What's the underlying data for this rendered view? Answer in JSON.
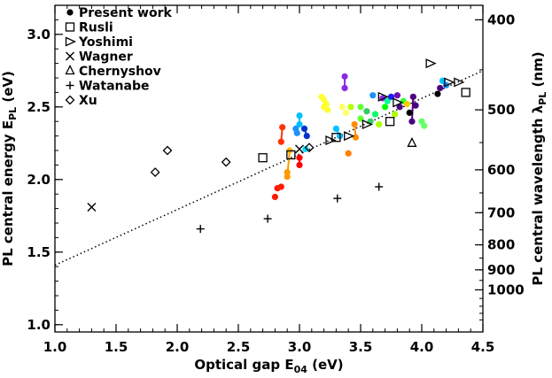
{
  "chart_data": {
    "type": "scatter",
    "xlabel": "Optical gap E",
    "xlabel_sub": "04",
    "xlabel_unit": " (eV)",
    "ylabel": "PL central energy E",
    "ylabel_sub": "PL",
    "ylabel_unit": " (eV)",
    "y2label": "PL central wavelength λ",
    "y2label_sub": "PL",
    "y2label_unit": " (nm)",
    "xlim": [
      1.0,
      4.5
    ],
    "ylim": [
      0.95,
      3.2
    ],
    "x_ticks": [
      "1.0",
      "1.5",
      "2.0",
      "2.5",
      "3.0",
      "3.5",
      "4.0",
      "4.5"
    ],
    "y_ticks": [
      "1.0",
      "1.5",
      "2.0",
      "2.5",
      "3.0"
    ],
    "y2_ticks": [
      "400",
      "500",
      "600",
      "700",
      "800",
      "900",
      "1000"
    ],
    "trend_line": {
      "x": [
        1.0,
        4.5
      ],
      "y": [
        1.41,
        2.75
      ]
    },
    "legend_position": "top-left",
    "series": [
      {
        "name": "Present work",
        "marker": "circle-filled",
        "points": [
          {
            "x": 2.8,
            "y": 1.88,
            "color": "#ff1a00"
          },
          {
            "x": 2.82,
            "y": 1.94,
            "color": "#ff1a00"
          },
          {
            "x": 2.85,
            "y": 1.95,
            "color": "#ff1a00"
          },
          {
            "x": 2.86,
            "y": 2.36,
            "color": "#ff3300"
          },
          {
            "x": 2.85,
            "y": 2.26,
            "color": "#ff3300"
          },
          {
            "x": 2.9,
            "y": 2.02,
            "color": "#ff9900"
          },
          {
            "x": 2.9,
            "y": 2.05,
            "color": "#ff9900"
          },
          {
            "x": 2.92,
            "y": 2.2,
            "color": "#ffbb00"
          },
          {
            "x": 2.97,
            "y": 2.35,
            "color": "#1e90ff"
          },
          {
            "x": 2.98,
            "y": 2.32,
            "color": "#1e90ff"
          },
          {
            "x": 3.0,
            "y": 2.15,
            "color": "#ff0000"
          },
          {
            "x": 3.0,
            "y": 2.1,
            "color": "#ff0000"
          },
          {
            "x": 3.0,
            "y": 2.44,
            "color": "#00bfff"
          },
          {
            "x": 3.0,
            "y": 2.38,
            "color": "#00bfff"
          },
          {
            "x": 3.04,
            "y": 2.35,
            "color": "#0033cc"
          },
          {
            "x": 3.06,
            "y": 2.3,
            "color": "#0033cc"
          },
          {
            "x": 3.05,
            "y": 2.21,
            "color": "#00e0ff"
          },
          {
            "x": 3.18,
            "y": 2.57,
            "color": "#ffff33"
          },
          {
            "x": 3.2,
            "y": 2.5,
            "color": "#ffff33"
          },
          {
            "x": 3.2,
            "y": 2.55,
            "color": "#ffff33"
          },
          {
            "x": 3.22,
            "y": 2.52,
            "color": "#ffff33"
          },
          {
            "x": 3.23,
            "y": 2.48,
            "color": "#ffff33"
          },
          {
            "x": 3.3,
            "y": 2.35,
            "color": "#00c0ff"
          },
          {
            "x": 3.33,
            "y": 2.3,
            "color": "#00c0ff"
          },
          {
            "x": 3.37,
            "y": 2.71,
            "color": "#8a2be2"
          },
          {
            "x": 3.37,
            "y": 2.63,
            "color": "#8a2be2"
          },
          {
            "x": 3.35,
            "y": 2.5,
            "color": "#ffff66"
          },
          {
            "x": 3.38,
            "y": 2.46,
            "color": "#ffff66"
          },
          {
            "x": 3.4,
            "y": 2.18,
            "color": "#ff7f00"
          },
          {
            "x": 3.42,
            "y": 2.5,
            "color": "#b8ff00"
          },
          {
            "x": 3.45,
            "y": 2.38,
            "color": "#ff8c00"
          },
          {
            "x": 3.46,
            "y": 2.29,
            "color": "#ff8c00"
          },
          {
            "x": 3.5,
            "y": 2.42,
            "color": "#66ff33"
          },
          {
            "x": 3.5,
            "y": 2.5,
            "color": "#66ff33"
          },
          {
            "x": 3.55,
            "y": 2.47,
            "color": "#33cc66"
          },
          {
            "x": 3.58,
            "y": 2.4,
            "color": "#33cc66"
          },
          {
            "x": 3.6,
            "y": 2.58,
            "color": "#1e90ff"
          },
          {
            "x": 3.62,
            "y": 2.45,
            "color": "#00ff66"
          },
          {
            "x": 3.65,
            "y": 2.38,
            "color": "#aaff00"
          },
          {
            "x": 3.68,
            "y": 2.56,
            "color": "#8a2be2"
          },
          {
            "x": 3.7,
            "y": 2.5,
            "color": "#00ff00"
          },
          {
            "x": 3.72,
            "y": 2.54,
            "color": "#00ff99"
          },
          {
            "x": 3.75,
            "y": 2.57,
            "color": "#1a1aff"
          },
          {
            "x": 3.78,
            "y": 2.45,
            "color": "#aaff00"
          },
          {
            "x": 3.8,
            "y": 2.58,
            "color": "#6a0dad"
          },
          {
            "x": 3.82,
            "y": 2.5,
            "color": "#4b0082"
          },
          {
            "x": 3.85,
            "y": 2.54,
            "color": "#33ff33"
          },
          {
            "x": 3.88,
            "y": 2.52,
            "color": "#ffcc00"
          },
          {
            "x": 3.9,
            "y": 2.46,
            "color": "#000000"
          },
          {
            "x": 3.92,
            "y": 2.4,
            "color": "#4b0082"
          },
          {
            "x": 3.93,
            "y": 2.57,
            "color": "#4b0082"
          },
          {
            "x": 3.95,
            "y": 2.51,
            "color": "#4b0082"
          },
          {
            "x": 4.0,
            "y": 2.4,
            "color": "#66ff66"
          },
          {
            "x": 4.02,
            "y": 2.37,
            "color": "#66ff66"
          },
          {
            "x": 4.13,
            "y": 2.59,
            "color": "#000000"
          },
          {
            "x": 4.15,
            "y": 2.63,
            "color": "#4b0082"
          },
          {
            "x": 4.17,
            "y": 2.68,
            "color": "#00bfff"
          },
          {
            "x": 4.2,
            "y": 2.65,
            "color": "#1e90ff"
          }
        ],
        "links": [
          [
            [
              2.86,
              2.36
            ],
            [
              2.85,
              2.26
            ],
            "#ff3300"
          ],
          [
            [
              2.9,
              2.02
            ],
            [
              2.92,
              2.2
            ],
            "#ff9900"
          ],
          [
            [
              3.0,
              2.15
            ],
            [
              3.0,
              2.1
            ],
            "#ff0000"
          ],
          [
            [
              3.0,
              2.44
            ],
            [
              3.0,
              2.38
            ],
            "#00bfff"
          ],
          [
            [
              3.04,
              2.35
            ],
            [
              3.06,
              2.3
            ],
            "#0033cc"
          ],
          [
            [
              3.18,
              2.57
            ],
            [
              3.23,
              2.48
            ],
            "#ffff33"
          ],
          [
            [
              3.3,
              2.35
            ],
            [
              3.33,
              2.3
            ],
            "#00c0ff"
          ],
          [
            [
              3.37,
              2.71
            ],
            [
              3.37,
              2.63
            ],
            "#8a2be2"
          ],
          [
            [
              3.45,
              2.38
            ],
            [
              3.46,
              2.29
            ],
            "#ff8c00"
          ],
          [
            [
              3.93,
              2.57
            ],
            [
              3.92,
              2.4
            ],
            "#4b0082"
          ],
          [
            [
              4.0,
              2.4
            ],
            [
              4.02,
              2.37
            ],
            "#66ff66"
          ]
        ]
      },
      {
        "name": "Rusli",
        "marker": "square-open",
        "points": [
          {
            "x": 2.7,
            "y": 2.15
          },
          {
            "x": 2.93,
            "y": 2.17
          },
          {
            "x": 3.3,
            "y": 2.29
          },
          {
            "x": 3.74,
            "y": 2.4
          },
          {
            "x": 4.36,
            "y": 2.6
          }
        ]
      },
      {
        "name": "Yoshimi",
        "marker": "triangle-right-open",
        "points": [
          {
            "x": 3.25,
            "y": 2.27
          },
          {
            "x": 3.4,
            "y": 2.3
          },
          {
            "x": 3.55,
            "y": 2.38
          },
          {
            "x": 3.68,
            "y": 2.57
          },
          {
            "x": 3.8,
            "y": 2.53
          },
          {
            "x": 4.07,
            "y": 2.8
          },
          {
            "x": 4.22,
            "y": 2.67
          },
          {
            "x": 4.3,
            "y": 2.67
          }
        ]
      },
      {
        "name": "Wagner",
        "marker": "x",
        "points": [
          {
            "x": 1.3,
            "y": 1.81
          },
          {
            "x": 3.0,
            "y": 2.21
          }
        ]
      },
      {
        "name": "Chernyshov",
        "marker": "triangle-up-open",
        "points": [
          {
            "x": 3.92,
            "y": 2.25
          }
        ]
      },
      {
        "name": "Watanabe",
        "marker": "plus",
        "points": [
          {
            "x": 2.19,
            "y": 1.66
          },
          {
            "x": 2.74,
            "y": 1.73
          },
          {
            "x": 3.31,
            "y": 1.87
          },
          {
            "x": 3.65,
            "y": 1.95
          }
        ]
      },
      {
        "name": "Xu",
        "marker": "diamond-open",
        "points": [
          {
            "x": 1.82,
            "y": 2.05
          },
          {
            "x": 1.92,
            "y": 2.2
          },
          {
            "x": 2.4,
            "y": 2.12
          },
          {
            "x": 3.08,
            "y": 2.22
          }
        ]
      }
    ]
  }
}
